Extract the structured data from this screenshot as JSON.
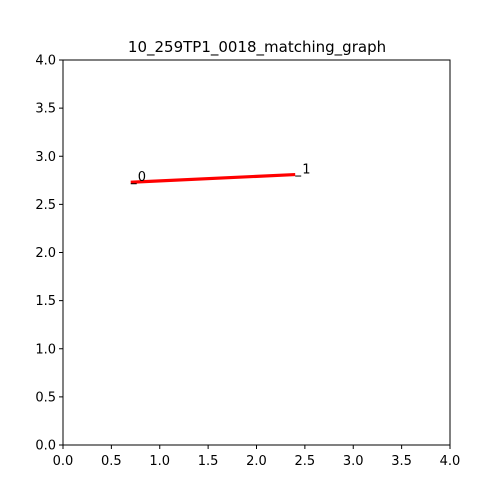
{
  "chart_data": {
    "type": "line",
    "title": "10_259TP1_0018_matching_graph",
    "xlabel": "",
    "ylabel": "",
    "xlim": [
      0,
      4
    ],
    "ylim": [
      0,
      4
    ],
    "grid": false,
    "x_ticks": [
      "0.0",
      "0.5",
      "1.0",
      "1.5",
      "2.0",
      "2.5",
      "3.0",
      "3.5",
      "4.0"
    ],
    "y_ticks": [
      "0.0",
      "0.5",
      "1.0",
      "1.5",
      "2.0",
      "2.5",
      "3.0",
      "3.5",
      "4.0"
    ],
    "nodes": [
      {
        "label": "0",
        "x": 0.7,
        "y": 2.73
      },
      {
        "label": "1",
        "x": 2.4,
        "y": 2.81
      }
    ],
    "edges": [
      {
        "from": 0,
        "to": 1,
        "color": "#ff0000"
      }
    ],
    "colors": {
      "edge": "#ff0000",
      "axis": "#000000"
    }
  }
}
